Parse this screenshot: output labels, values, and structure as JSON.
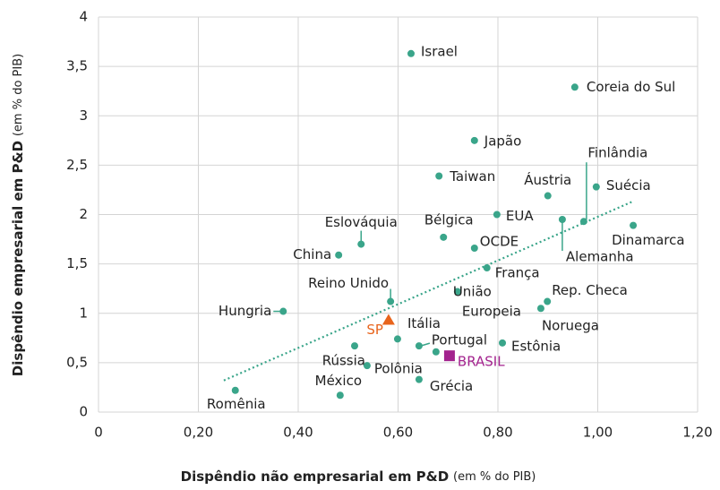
{
  "chart_data": {
    "type": "scatter",
    "xlabel": "Dispêndio não empresarial em P&D",
    "xlabel_note": "(em % do PIB)",
    "ylabel": "Dispêndio empresarial em P&D",
    "ylabel_note": "(em % do PIB)",
    "xlim": [
      0,
      1.2
    ],
    "ylim": [
      0,
      4
    ],
    "xticks": [
      0,
      {
        "value": 0.2,
        "label": "0,20"
      },
      {
        "value": 0.4,
        "label": "0,40"
      },
      {
        "value": 0.6,
        "label": "0,60"
      },
      {
        "value": 0.8,
        "label": "0,80"
      },
      {
        "value": 1.0,
        "label": "1,00"
      },
      {
        "value": 1.2,
        "label": "1,20"
      }
    ],
    "yticks": [
      0,
      {
        "value": 0.5,
        "label": "0,5"
      },
      1,
      {
        "value": 1.5,
        "label": "1,5"
      },
      2,
      {
        "value": 2.5,
        "label": "2,5"
      },
      3,
      {
        "value": 3.5,
        "label": "3,5"
      },
      4
    ],
    "grid": true,
    "points": {
      "color": "#3aa58a",
      "labels": [
        "Israel",
        "Coreia do Sul",
        "Japão",
        "Taiwan",
        "Áustria",
        "Suécia",
        "Finlândia",
        "Alemanha",
        "Dinamarca",
        "EUA",
        "Bélgica",
        "OCDE",
        "Eslováquia",
        "China",
        "França",
        "Reino Unido",
        "União Europeia",
        "Rep. Checa",
        "Noruega",
        "Hungria",
        "Itália",
        "Portugal",
        "Rússia",
        "Estônia",
        null,
        "Polônia",
        "Grécia",
        "México",
        "Romênia"
      ],
      "x": [
        0.626,
        0.954,
        0.753,
        0.682,
        0.9,
        0.997,
        0.972,
        0.929,
        1.071,
        0.798,
        0.691,
        0.753,
        0.526,
        0.481,
        0.778,
        0.585,
        0.719,
        0.899,
        0.886,
        0.37,
        0.599,
        0.642,
        0.513,
        0.809,
        0.676,
        0.538,
        0.642,
        0.484,
        0.274
      ],
      "y": [
        3.63,
        3.29,
        2.75,
        2.39,
        2.19,
        2.28,
        1.93,
        1.95,
        1.89,
        2.0,
        1.77,
        1.66,
        1.7,
        1.59,
        1.46,
        1.12,
        1.22,
        1.12,
        1.05,
        1.02,
        0.74,
        0.67,
        0.67,
        0.7,
        0.61,
        0.47,
        0.33,
        0.17,
        0.22
      ]
    },
    "highlights": [
      {
        "label": "SP",
        "x": 0.581,
        "y": 0.93,
        "color": "#e8641c",
        "marker": "triangle"
      },
      {
        "label": "BRASIL",
        "x": 0.703,
        "y": 0.57,
        "color": "#a3238e",
        "marker": "square"
      }
    ],
    "trendline": {
      "x": [
        0.251,
        1.069
      ],
      "y": [
        0.32,
        2.13
      ],
      "color": "#3aa58a"
    }
  }
}
